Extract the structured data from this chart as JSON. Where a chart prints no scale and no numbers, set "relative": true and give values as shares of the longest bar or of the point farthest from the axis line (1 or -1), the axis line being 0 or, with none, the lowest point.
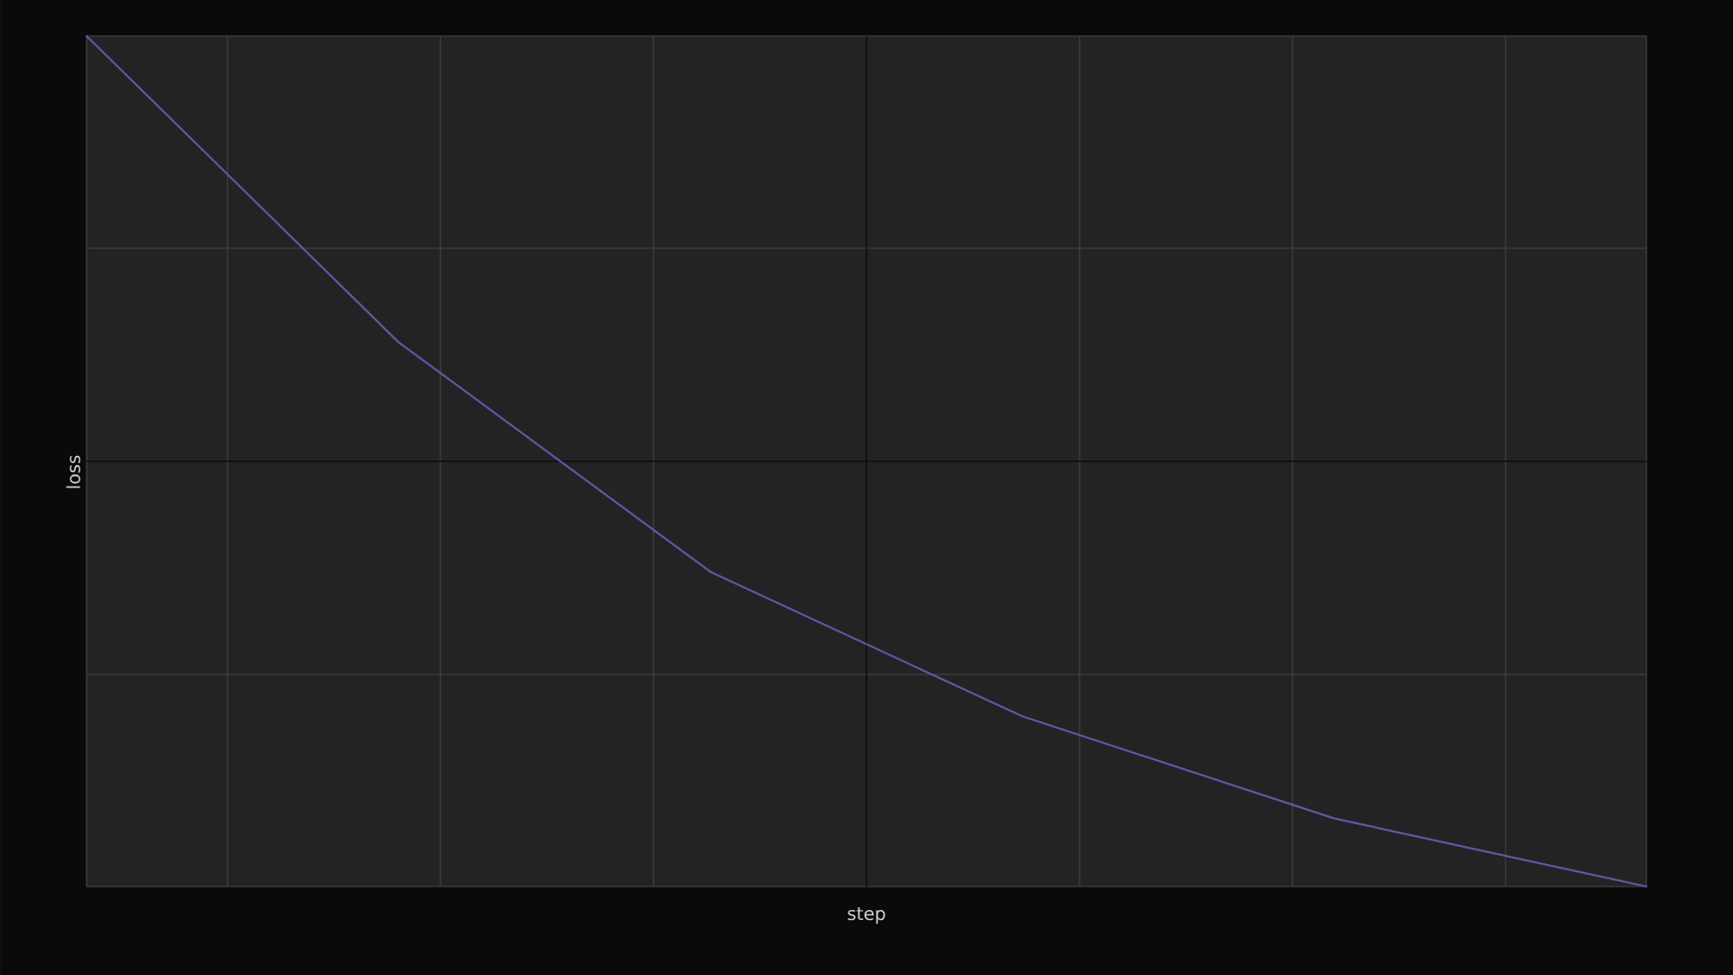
{
  "chart_data": {
    "type": "line",
    "xlabel": "step",
    "ylabel": "loss",
    "categories": [
      null,
      null,
      null,
      null,
      null,
      null
    ],
    "values": [
      1,
      0.64,
      0.37,
      0.2,
      0.08,
      0
    ],
    "color": "#5a5aa8",
    "relative": true,
    "grid": true
  }
}
